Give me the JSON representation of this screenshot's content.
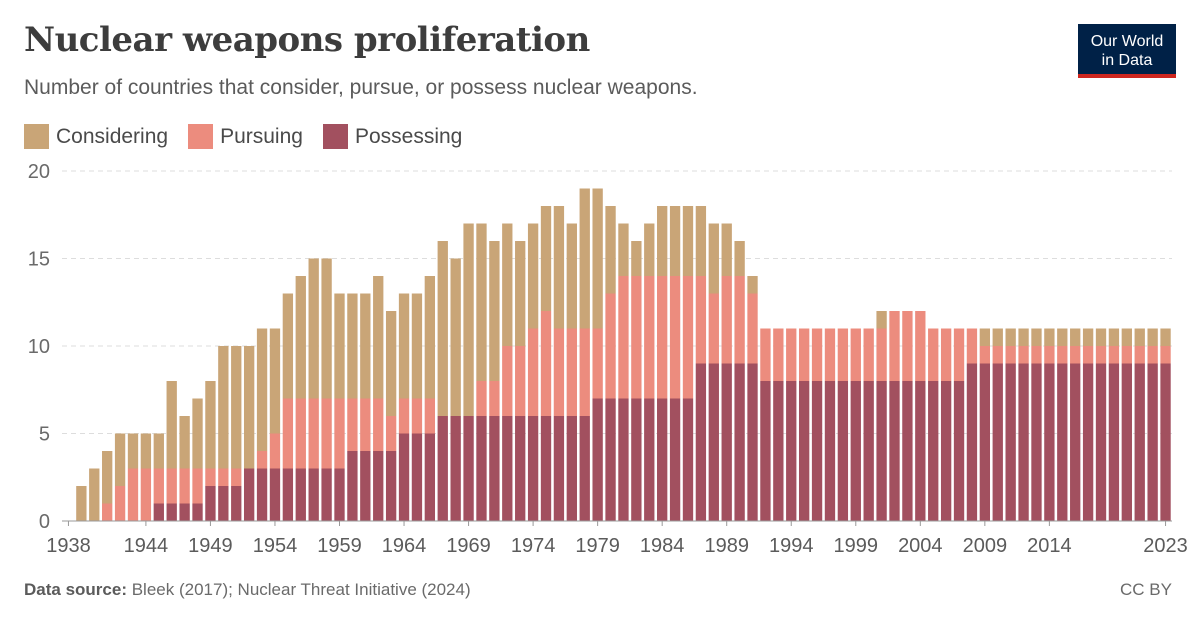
{
  "header": {
    "title": "Nuclear weapons proliferation",
    "subtitle": "Number of countries that consider, pursue, or possess nuclear weapons.",
    "logo_line1": "Our World",
    "logo_line2": "in Data"
  },
  "footer": {
    "source_label": "Data source:",
    "source_text": "Bleek (2017); Nuclear Threat Initiative (2024)",
    "license": "CC BY"
  },
  "chart_data": {
    "type": "bar",
    "stacked": true,
    "title": "Nuclear weapons proliferation",
    "subtitle": "Number of countries that consider, pursue, or possess nuclear weapons.",
    "xlabel": "",
    "ylabel": "",
    "ylim": [
      0,
      20
    ],
    "yticks": [
      0,
      5,
      10,
      15,
      20
    ],
    "xtick_labels": [
      "1938",
      "1944",
      "1949",
      "1954",
      "1959",
      "1964",
      "1969",
      "1974",
      "1979",
      "1984",
      "1989",
      "1994",
      "1999",
      "2004",
      "2009",
      "2014",
      "2023"
    ],
    "grid": true,
    "legend_position": "top-left",
    "categories": [
      1938,
      1939,
      1940,
      1941,
      1942,
      1943,
      1944,
      1945,
      1946,
      1947,
      1948,
      1949,
      1950,
      1951,
      1952,
      1953,
      1954,
      1955,
      1956,
      1957,
      1958,
      1959,
      1960,
      1961,
      1962,
      1963,
      1964,
      1965,
      1966,
      1967,
      1968,
      1969,
      1970,
      1971,
      1972,
      1973,
      1974,
      1975,
      1976,
      1977,
      1978,
      1979,
      1980,
      1981,
      1982,
      1983,
      1984,
      1985,
      1986,
      1987,
      1988,
      1989,
      1990,
      1991,
      1992,
      1993,
      1994,
      1995,
      1996,
      1997,
      1998,
      1999,
      2000,
      2001,
      2002,
      2003,
      2004,
      2005,
      2006,
      2007,
      2008,
      2009,
      2010,
      2011,
      2012,
      2013,
      2014,
      2015,
      2016,
      2017,
      2018,
      2019,
      2020,
      2021,
      2022,
      2023
    ],
    "series": [
      {
        "name": "Possessing",
        "color": "#a2505f",
        "values": [
          0,
          0,
          0,
          0,
          0,
          0,
          0,
          1,
          1,
          1,
          1,
          2,
          2,
          2,
          3,
          3,
          3,
          3,
          3,
          3,
          3,
          3,
          4,
          4,
          4,
          4,
          5,
          5,
          5,
          6,
          6,
          6,
          6,
          6,
          6,
          6,
          6,
          6,
          6,
          6,
          6,
          7,
          7,
          7,
          7,
          7,
          7,
          7,
          7,
          9,
          9,
          9,
          9,
          9,
          8,
          8,
          8,
          8,
          8,
          8,
          8,
          8,
          8,
          8,
          8,
          8,
          8,
          8,
          8,
          8,
          9,
          9,
          9,
          9,
          9,
          9,
          9,
          9,
          9,
          9,
          9,
          9,
          9,
          9,
          9,
          9
        ]
      },
      {
        "name": "Pursuing",
        "color": "#ec8c7e",
        "values": [
          0,
          0,
          0,
          1,
          2,
          3,
          3,
          2,
          2,
          2,
          2,
          1,
          1,
          1,
          0,
          1,
          2,
          4,
          4,
          4,
          4,
          4,
          3,
          3,
          3,
          2,
          2,
          2,
          2,
          0,
          0,
          0,
          2,
          2,
          4,
          4,
          5,
          6,
          5,
          5,
          5,
          4,
          6,
          7,
          7,
          7,
          7,
          7,
          7,
          5,
          4,
          5,
          5,
          4,
          3,
          3,
          3,
          3,
          3,
          3,
          3,
          3,
          3,
          3,
          4,
          4,
          4,
          3,
          3,
          3,
          2,
          1,
          1,
          1,
          1,
          1,
          1,
          1,
          1,
          1,
          1,
          1,
          1,
          1,
          1,
          1
        ]
      },
      {
        "name": "Considering",
        "color": "#c9a577",
        "values": [
          0,
          2,
          3,
          3,
          3,
          2,
          2,
          2,
          5,
          3,
          4,
          5,
          7,
          7,
          7,
          7,
          6,
          6,
          7,
          8,
          8,
          6,
          6,
          6,
          7,
          6,
          6,
          6,
          7,
          10,
          9,
          11,
          9,
          8,
          7,
          6,
          6,
          6,
          7,
          6,
          8,
          8,
          5,
          3,
          2,
          3,
          4,
          4,
          4,
          4,
          4,
          3,
          2,
          1,
          0,
          0,
          0,
          0,
          0,
          0,
          0,
          0,
          0,
          1,
          0,
          0,
          0,
          0,
          0,
          0,
          0,
          1,
          1,
          1,
          1,
          1,
          1,
          1,
          1,
          1,
          1,
          1,
          1,
          1,
          1,
          1
        ]
      }
    ]
  }
}
